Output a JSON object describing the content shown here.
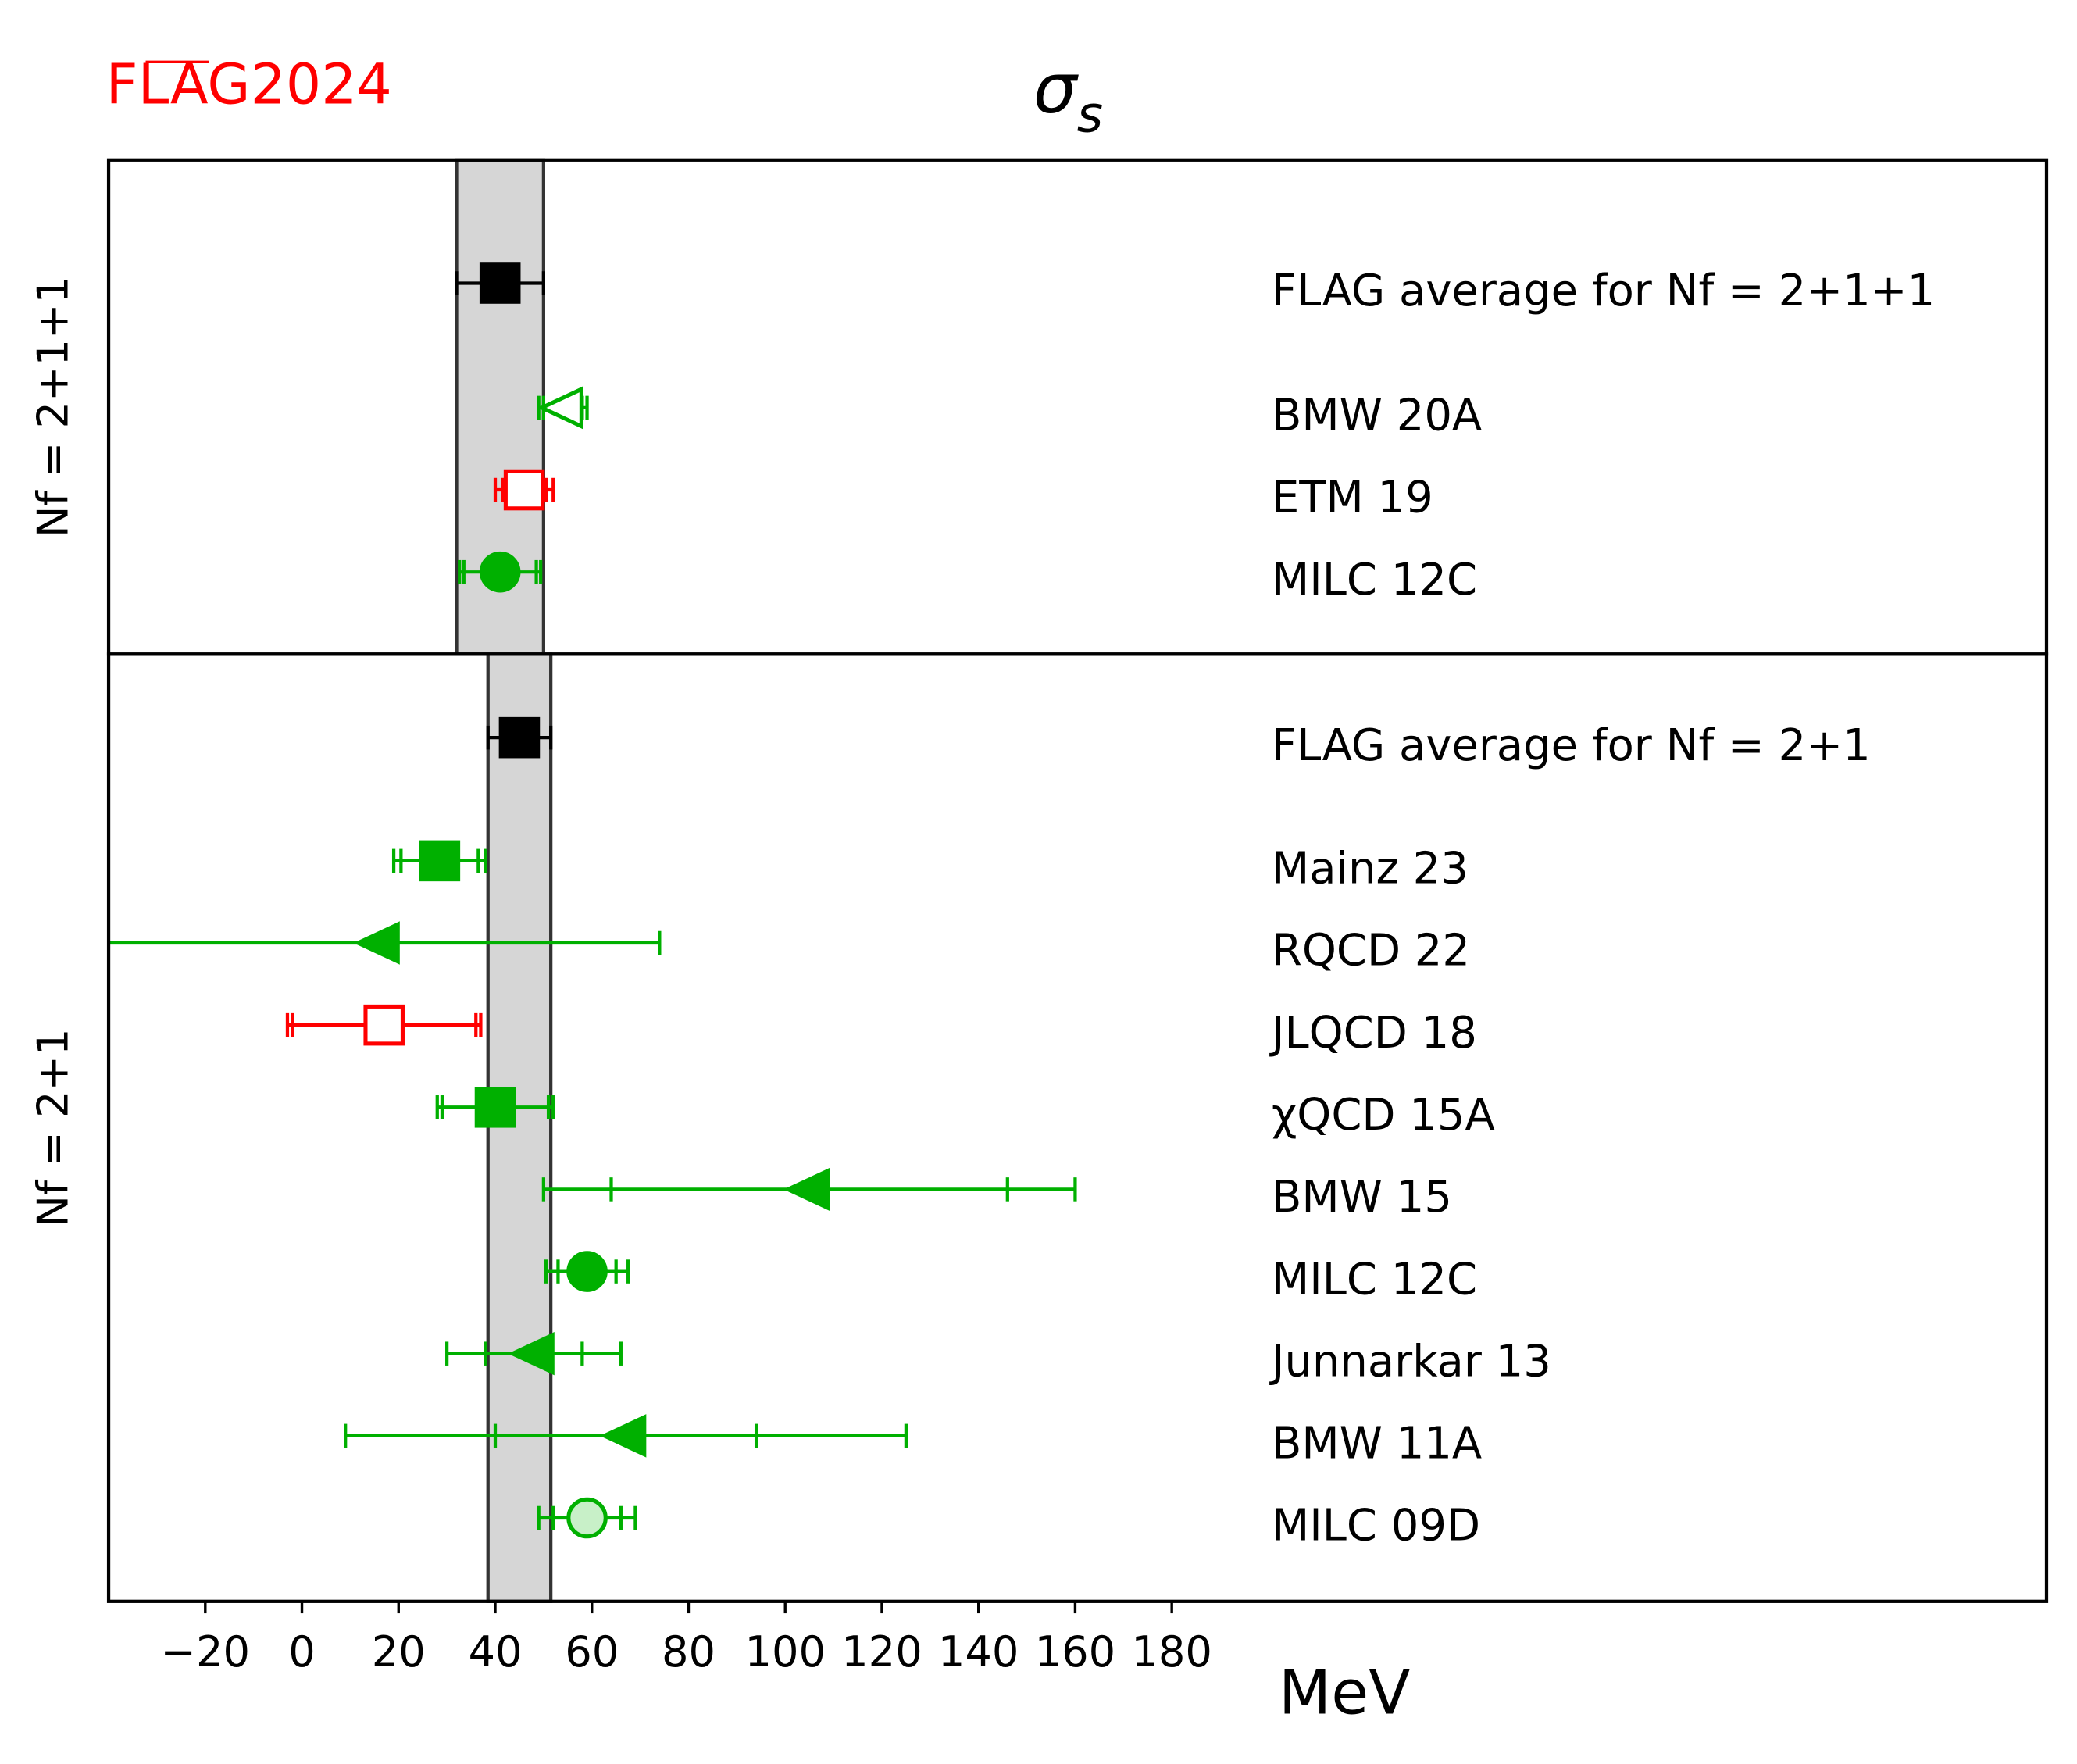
{
  "chart_data": {
    "type": "forest",
    "logo": "FLAG2024",
    "title": "σ",
    "title_subscript": "s",
    "xlabel": "MeV",
    "xlim": [
      -40,
      361
    ],
    "xticks": [
      -20,
      0,
      20,
      40,
      60,
      80,
      100,
      120,
      140,
      160,
      180
    ],
    "panels": [
      {
        "label": "Nf = 2+1+1",
        "rows": [
          {
            "name": "FLAG average for Nf = 2+1+1",
            "value": 41,
            "error": 9,
            "stat_error": null,
            "marker": "square",
            "color": "#000000",
            "fill": "#000000"
          },
          {
            "name": "BMW 20A",
            "value": 54,
            "error": 5,
            "stat_error": 4,
            "marker": "triangle-left",
            "color": "#00b000",
            "fill": "none"
          },
          {
            "name": "ETM 19",
            "value": 46,
            "error": 6,
            "stat_error": 4.5,
            "marker": "square",
            "color": "#ff0000",
            "fill": "none"
          },
          {
            "name": "MILC 12C",
            "value": 41,
            "error": 8.4,
            "stat_error": 7.5,
            "marker": "circle",
            "color": "#00b000",
            "fill": "#00b000"
          }
        ]
      },
      {
        "label": "Nf = 2+1",
        "rows": [
          {
            "name": "FLAG average for Nf = 2+1",
            "value": 45,
            "error": 6.5,
            "stat_error": null,
            "marker": "square",
            "color": "#000000",
            "fill": "#000000"
          },
          {
            "name": "Mainz 23",
            "value": 28.5,
            "error": 9.5,
            "stat_error": 8,
            "marker": "square",
            "color": "#00b000",
            "fill": "#00b000"
          },
          {
            "name": "RQCD 22",
            "value": 16,
            "error": 58,
            "stat_error": null,
            "marker": "triangle-left",
            "color": "#00b000",
            "fill": "#00b000"
          },
          {
            "name": "JLQCD 18",
            "value": 17,
            "error": 20,
            "stat_error": 19,
            "marker": "square",
            "color": "#ff0000",
            "fill": "none"
          },
          {
            "name": "χQCD 15A",
            "value": 40,
            "error": 12,
            "stat_error": 11,
            "marker": "square",
            "color": "#00b000",
            "fill": "#00b000"
          },
          {
            "name": "BMW 15",
            "value": 105,
            "error": 55,
            "stat_error": 41,
            "marker": "triangle-left",
            "color": "#00b000",
            "fill": "#00b000"
          },
          {
            "name": "MILC 12C",
            "value": 59,
            "error": 8.5,
            "stat_error": 6,
            "marker": "circle",
            "color": "#00b000",
            "fill": "#00b000"
          },
          {
            "name": "Junnarkar 13",
            "value": 48,
            "error": 18,
            "stat_error": 10,
            "marker": "triangle-left",
            "color": "#00b000",
            "fill": "#00b000"
          },
          {
            "name": "BMW 11A",
            "value": 67,
            "error": 58,
            "stat_error": 27,
            "marker": "triangle-left",
            "color": "#00b000",
            "fill": "#00b000"
          },
          {
            "name": "MILC 09D",
            "value": 59,
            "error": 10,
            "stat_error": 7,
            "marker": "circle",
            "color": "#00b000",
            "fill": "#c8f0c8"
          }
        ]
      }
    ]
  }
}
